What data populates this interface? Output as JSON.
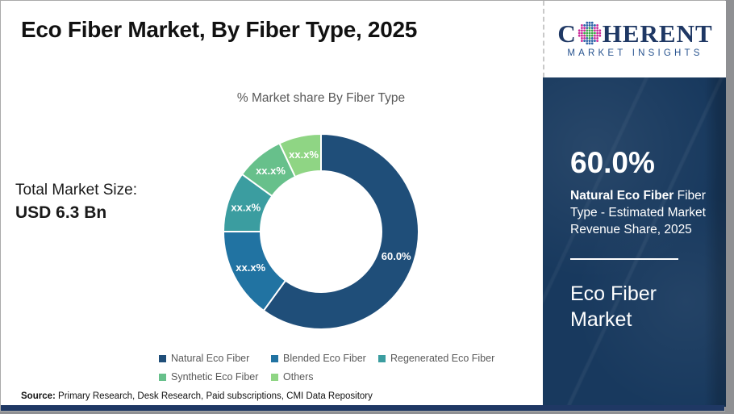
{
  "header": {
    "title": "Eco Fiber Market, By Fiber Type, 2025"
  },
  "logo": {
    "brand_c": "C",
    "brand_rest": "HERENT",
    "tagline": "MARKET INSIGHTS",
    "brand_color": "#1f3864",
    "globe_colors": {
      "green": "#3da748",
      "blue": "#2c63a8",
      "magenta": "#cb2c9b"
    }
  },
  "total_market": {
    "label": "Total Market Size:",
    "value": "USD 6.3 Bn"
  },
  "chart_data": {
    "type": "pie",
    "title": "% Market share By Fiber Type",
    "donut": true,
    "inner_radius_ratio": 0.62,
    "start_angle_deg": 0,
    "direction": "clockwise",
    "legend_position": "bottom",
    "slices": [
      {
        "label": "Natural Eco Fiber",
        "value": 60.0,
        "display": "60.0%",
        "color": "#1f4e79"
      },
      {
        "label": "Blended Eco Fiber",
        "value": 15.0,
        "display": "xx.x%",
        "color": "#2173a2"
      },
      {
        "label": "Regenerated Eco Fiber",
        "value": 10.0,
        "display": "xx.x%",
        "color": "#3b9da0"
      },
      {
        "label": "Synthetic Eco Fiber",
        "value": 8.0,
        "display": "xx.x%",
        "color": "#67c08b"
      },
      {
        "label": "Others",
        "value": 7.0,
        "display": "xx.x%",
        "color": "#8fd584"
      }
    ]
  },
  "sidebar": {
    "stat_value": "60.0%",
    "stat_desc_bold": "Natural Eco Fiber",
    "stat_desc_line1_rest": " Fiber",
    "stat_desc_line2": "Type - Estimated Market",
    "stat_desc_line3": "Revenue Share, 2025",
    "market_name": "Eco Fiber Market",
    "background_color": "#18395e"
  },
  "footer": {
    "source_label": "Source:",
    "source_text": " Primary Research, Desk Research, Paid subscriptions, CMI Data Repository"
  }
}
